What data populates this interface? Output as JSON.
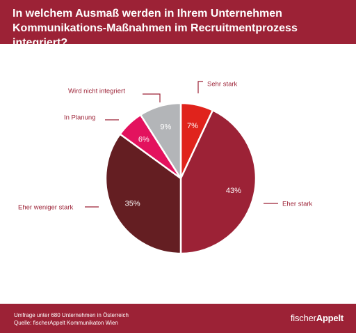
{
  "title": "In welchem Ausmaß werden in Ihrem Unternehmen Kommunikations-Maßnahmen im Recruitmentprozess integriert?",
  "footer": {
    "note": "Umfrage unter 680 Unternehmen in Österreich",
    "source": "Quelle: fischerAppelt Kommunikaton Wien",
    "logo_light": "fischer",
    "logo_bold": "Appelt"
  },
  "colors": {
    "accent": "#9c2236",
    "label_text": "#9c2236",
    "leader": "#9c2236",
    "slice_border": "#ffffff"
  },
  "chart_data": {
    "type": "pie",
    "title": "In welchem Ausmaß werden in Ihrem Unternehmen Kommunikations-Maßnahmen im Recruitmentprozess integriert?",
    "unit": "%",
    "start": "12 o'clock",
    "direction": "clockwise",
    "slices": [
      {
        "label": "Sehr stark",
        "value": 7,
        "value_label": "7%",
        "color": "#e0231c"
      },
      {
        "label": "Eher stark",
        "value": 43,
        "value_label": "43%",
        "color": "#9c2236"
      },
      {
        "label": "Eher weniger stark",
        "value": 35,
        "value_label": "35%",
        "color": "#641e22"
      },
      {
        "label": "In Planung",
        "value": 6,
        "value_label": "6%",
        "color": "#e3125e"
      },
      {
        "label": "Wird nicht integriert",
        "value": 9,
        "value_label": "9%",
        "color": "#b3b5b8"
      }
    ]
  }
}
